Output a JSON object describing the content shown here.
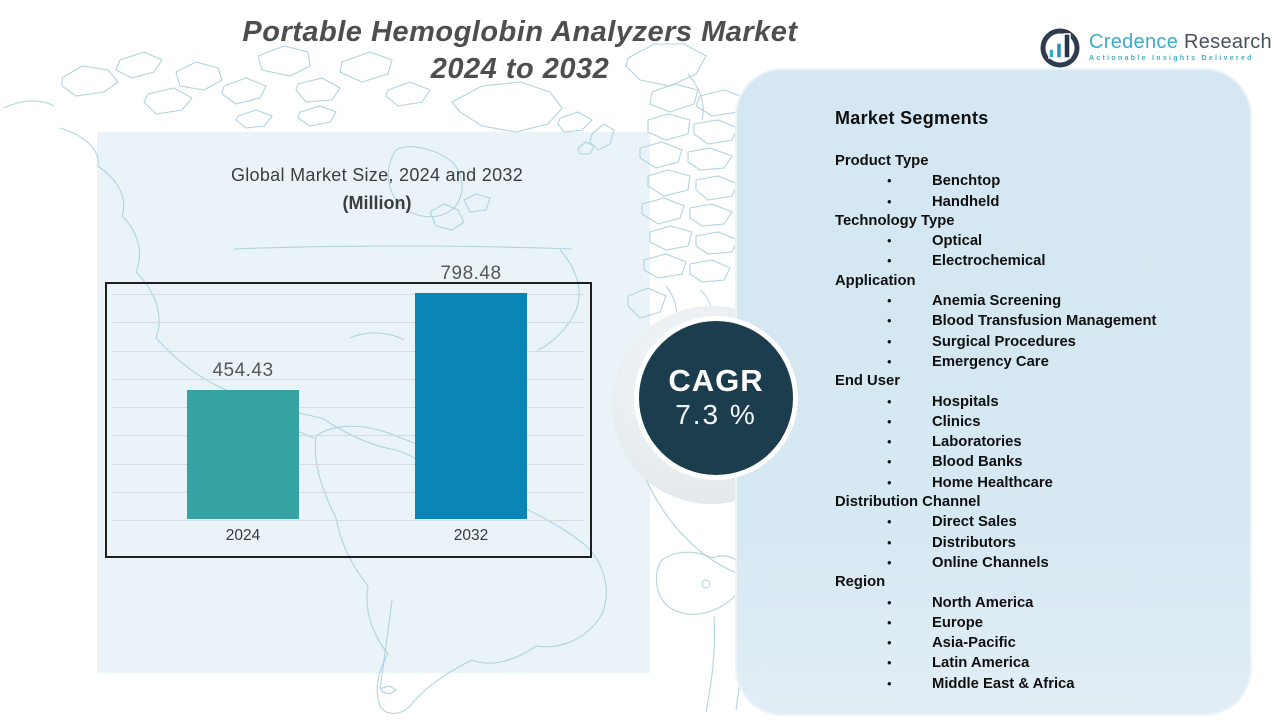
{
  "title": {
    "line1": "Portable Hemoglobin Analyzers Market",
    "line2": "2024 to 2032"
  },
  "logo": {
    "name_primary": "Credence",
    "name_secondary": "Research",
    "tagline": "Actionable Insights Delivered"
  },
  "chart_panel": {
    "title_line1": "Global Market Size, 2024 and 2032",
    "title_line2": "(Million)"
  },
  "chart_data": {
    "type": "bar",
    "title": "Global Market Size, 2024 and 2032 (Million)",
    "categories": [
      "2024",
      "2032"
    ],
    "values": [
      454.43,
      798.48
    ],
    "value_labels": [
      "454.43",
      "798.48"
    ],
    "series_colors": [
      "#35a3a3",
      "#0a85b5"
    ],
    "ylim": [
      0,
      960
    ],
    "grid": "horizontal",
    "legend": "none"
  },
  "cagr": {
    "label": "CAGR",
    "value": "7.3 %"
  },
  "segments": {
    "heading": "Market Segments",
    "groups": [
      {
        "label": "Product Type",
        "items": [
          "Benchtop",
          "Handheld"
        ]
      },
      {
        "label": "Technology Type",
        "items": [
          "Optical",
          "Electrochemical"
        ]
      },
      {
        "label": "Application",
        "items": [
          "Anemia Screening",
          "Blood Transfusion Management",
          "Surgical Procedures",
          "Emergency Care"
        ]
      },
      {
        "label": "End User",
        "items": [
          "Hospitals",
          "Clinics",
          "Laboratories",
          "Blood Banks",
          "Home Healthcare"
        ]
      },
      {
        "label": "Distribution Channel",
        "items": [
          "Direct Sales",
          "Distributors",
          "Online Channels"
        ]
      },
      {
        "label": "Region",
        "items": [
          "North America",
          "Europe",
          "Asia-Pacific",
          "Latin America",
          "Middle East & Africa"
        ]
      }
    ]
  },
  "colors": {
    "bar_2024": "#35a3a3",
    "bar_2032": "#0a85b5",
    "cagr_circle": "#1c3d4d",
    "segments_panel_bg": "#d5e8f2",
    "chart_panel_bg": "#eaf3f8",
    "map_stroke": "#a9cfdc",
    "title_text": "#4e4e4e",
    "logo_teal": "#3aadc9",
    "logo_dark": "#47525e"
  }
}
